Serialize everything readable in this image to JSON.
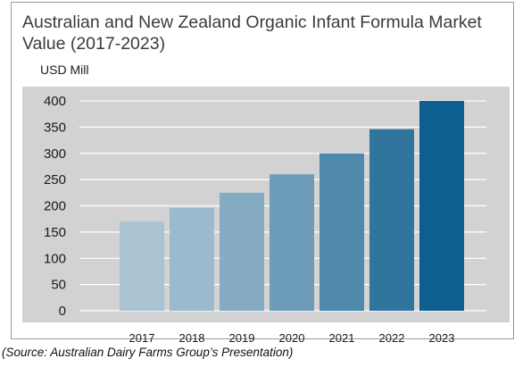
{
  "chart_data": {
    "type": "bar",
    "title": "Australian and New Zealand Organic Infant Formula Market Value (2017-2023)",
    "ylabel": "USD Mill",
    "xlabel": "",
    "categories": [
      "2017",
      "2018",
      "2019",
      "2020",
      "2021",
      "2022",
      "2023"
    ],
    "values": [
      170,
      196,
      225,
      260,
      300,
      346,
      400
    ],
    "ylim": [
      0,
      400
    ],
    "yticks": [
      0,
      50,
      100,
      150,
      200,
      250,
      300,
      350,
      400
    ],
    "grid": true,
    "colors": {
      "plot_background": "#d2d2d2",
      "gridline": "#ffffff",
      "bar_lightest": "#a9c3d3",
      "bar_darkest": "#0e5f8f"
    }
  },
  "source": "(Source: Australian Dairy Farms Group’s Presentation)"
}
